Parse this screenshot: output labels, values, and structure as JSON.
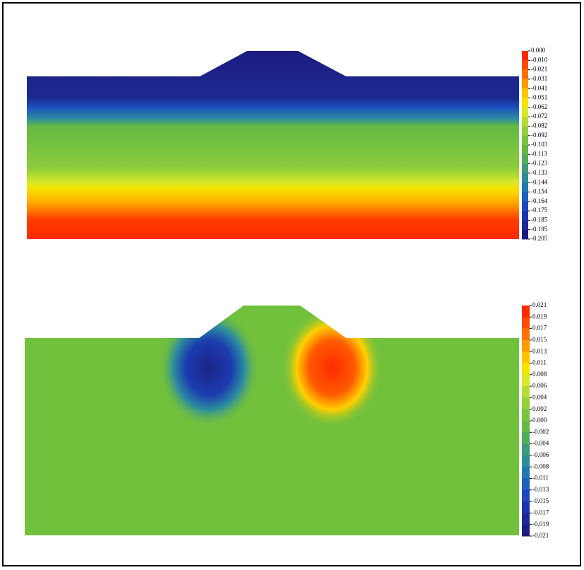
{
  "panels": [
    {
      "colorbar": {
        "labels": [
          "0.000",
          "-0.010",
          "-0.021",
          "-0.031",
          "-0.041",
          "-0.051",
          "-0.062",
          "-0.072",
          "-0.082",
          "-0.092",
          "-0.103",
          "-0.113",
          "-0.123",
          "-0.133",
          "-0.144",
          "-0.154",
          "-0.164",
          "-0.175",
          "-0.185",
          "-0.195",
          "-0.205"
        ]
      }
    },
    {
      "colorbar": {
        "labels": [
          "0.021",
          "0.019",
          "0.017",
          "0.015",
          "0.013",
          "0.011",
          "0.008",
          "0.006",
          "0.004",
          "0.002",
          "0.000",
          "-0.002",
          "-0.004",
          "-0.006",
          "-0.008",
          "-0.011",
          "-0.013",
          "-0.015",
          "-0.017",
          "-0.019",
          "-0.021"
        ]
      }
    }
  ]
}
